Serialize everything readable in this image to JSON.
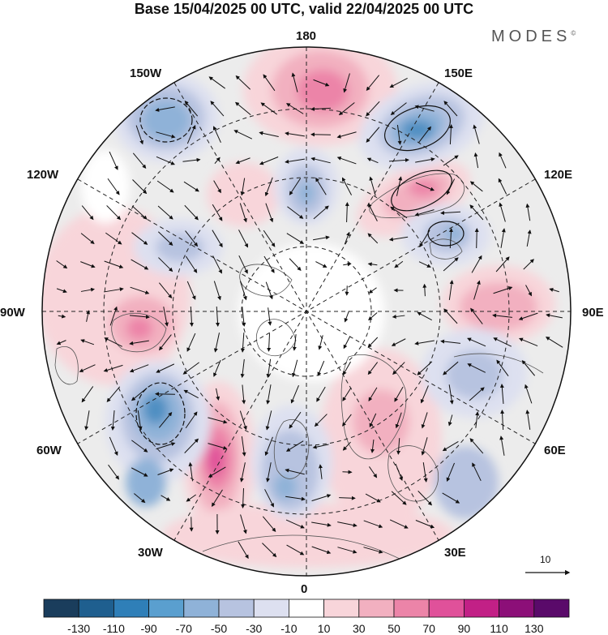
{
  "header": {
    "title": "Base 15/04/2025 00 UTC, valid 22/04/2025 00 UTC",
    "brand": "MODES",
    "brand_mark": "©"
  },
  "map": {
    "projection": "north-polar-stereographic",
    "longitude_labels": [
      {
        "id": "180",
        "text": "180"
      },
      {
        "id": "150E",
        "text": "150E"
      },
      {
        "id": "120E",
        "text": "120E"
      },
      {
        "id": "90E",
        "text": "90E"
      },
      {
        "id": "60E",
        "text": "60E"
      },
      {
        "id": "30E",
        "text": "30E"
      },
      {
        "id": "0",
        "text": "0"
      },
      {
        "id": "30W",
        "text": "30W"
      },
      {
        "id": "60W",
        "text": "60W"
      },
      {
        "id": "90W",
        "text": "90W"
      },
      {
        "id": "120W",
        "text": "120W"
      },
      {
        "id": "150W",
        "text": "150W"
      }
    ],
    "vector_reference": {
      "value": "10"
    },
    "colorbar": {
      "ticks": [
        "-130",
        "-110",
        "-90",
        "-70",
        "-50",
        "-30",
        "-10",
        "10",
        "30",
        "50",
        "70",
        "90",
        "110",
        "130"
      ],
      "colors": [
        "#1a3d5c",
        "#1f5f8f",
        "#2f7fb8",
        "#5a9fcf",
        "#8fb2d8",
        "#b7c3e0",
        "#dde0f0",
        "#ffffff",
        "#f8d5da",
        "#f2b0c0",
        "#ec84a8",
        "#e0519a",
        "#c22086",
        "#8c0f78",
        "#5a0a6a"
      ]
    },
    "anomaly_colors": {
      "neutral": "#ececec",
      "weak_positive": "#f8d5da",
      "positive": "#f2b0c0",
      "strong_positive": "#ec84a8",
      "very_strong_positive": "#e0519a",
      "weak_negative": "#dde0f0",
      "negative": "#b7c3e0",
      "strong_negative": "#8fb2d8",
      "very_strong_negative": "#4f8fc2"
    }
  }
}
